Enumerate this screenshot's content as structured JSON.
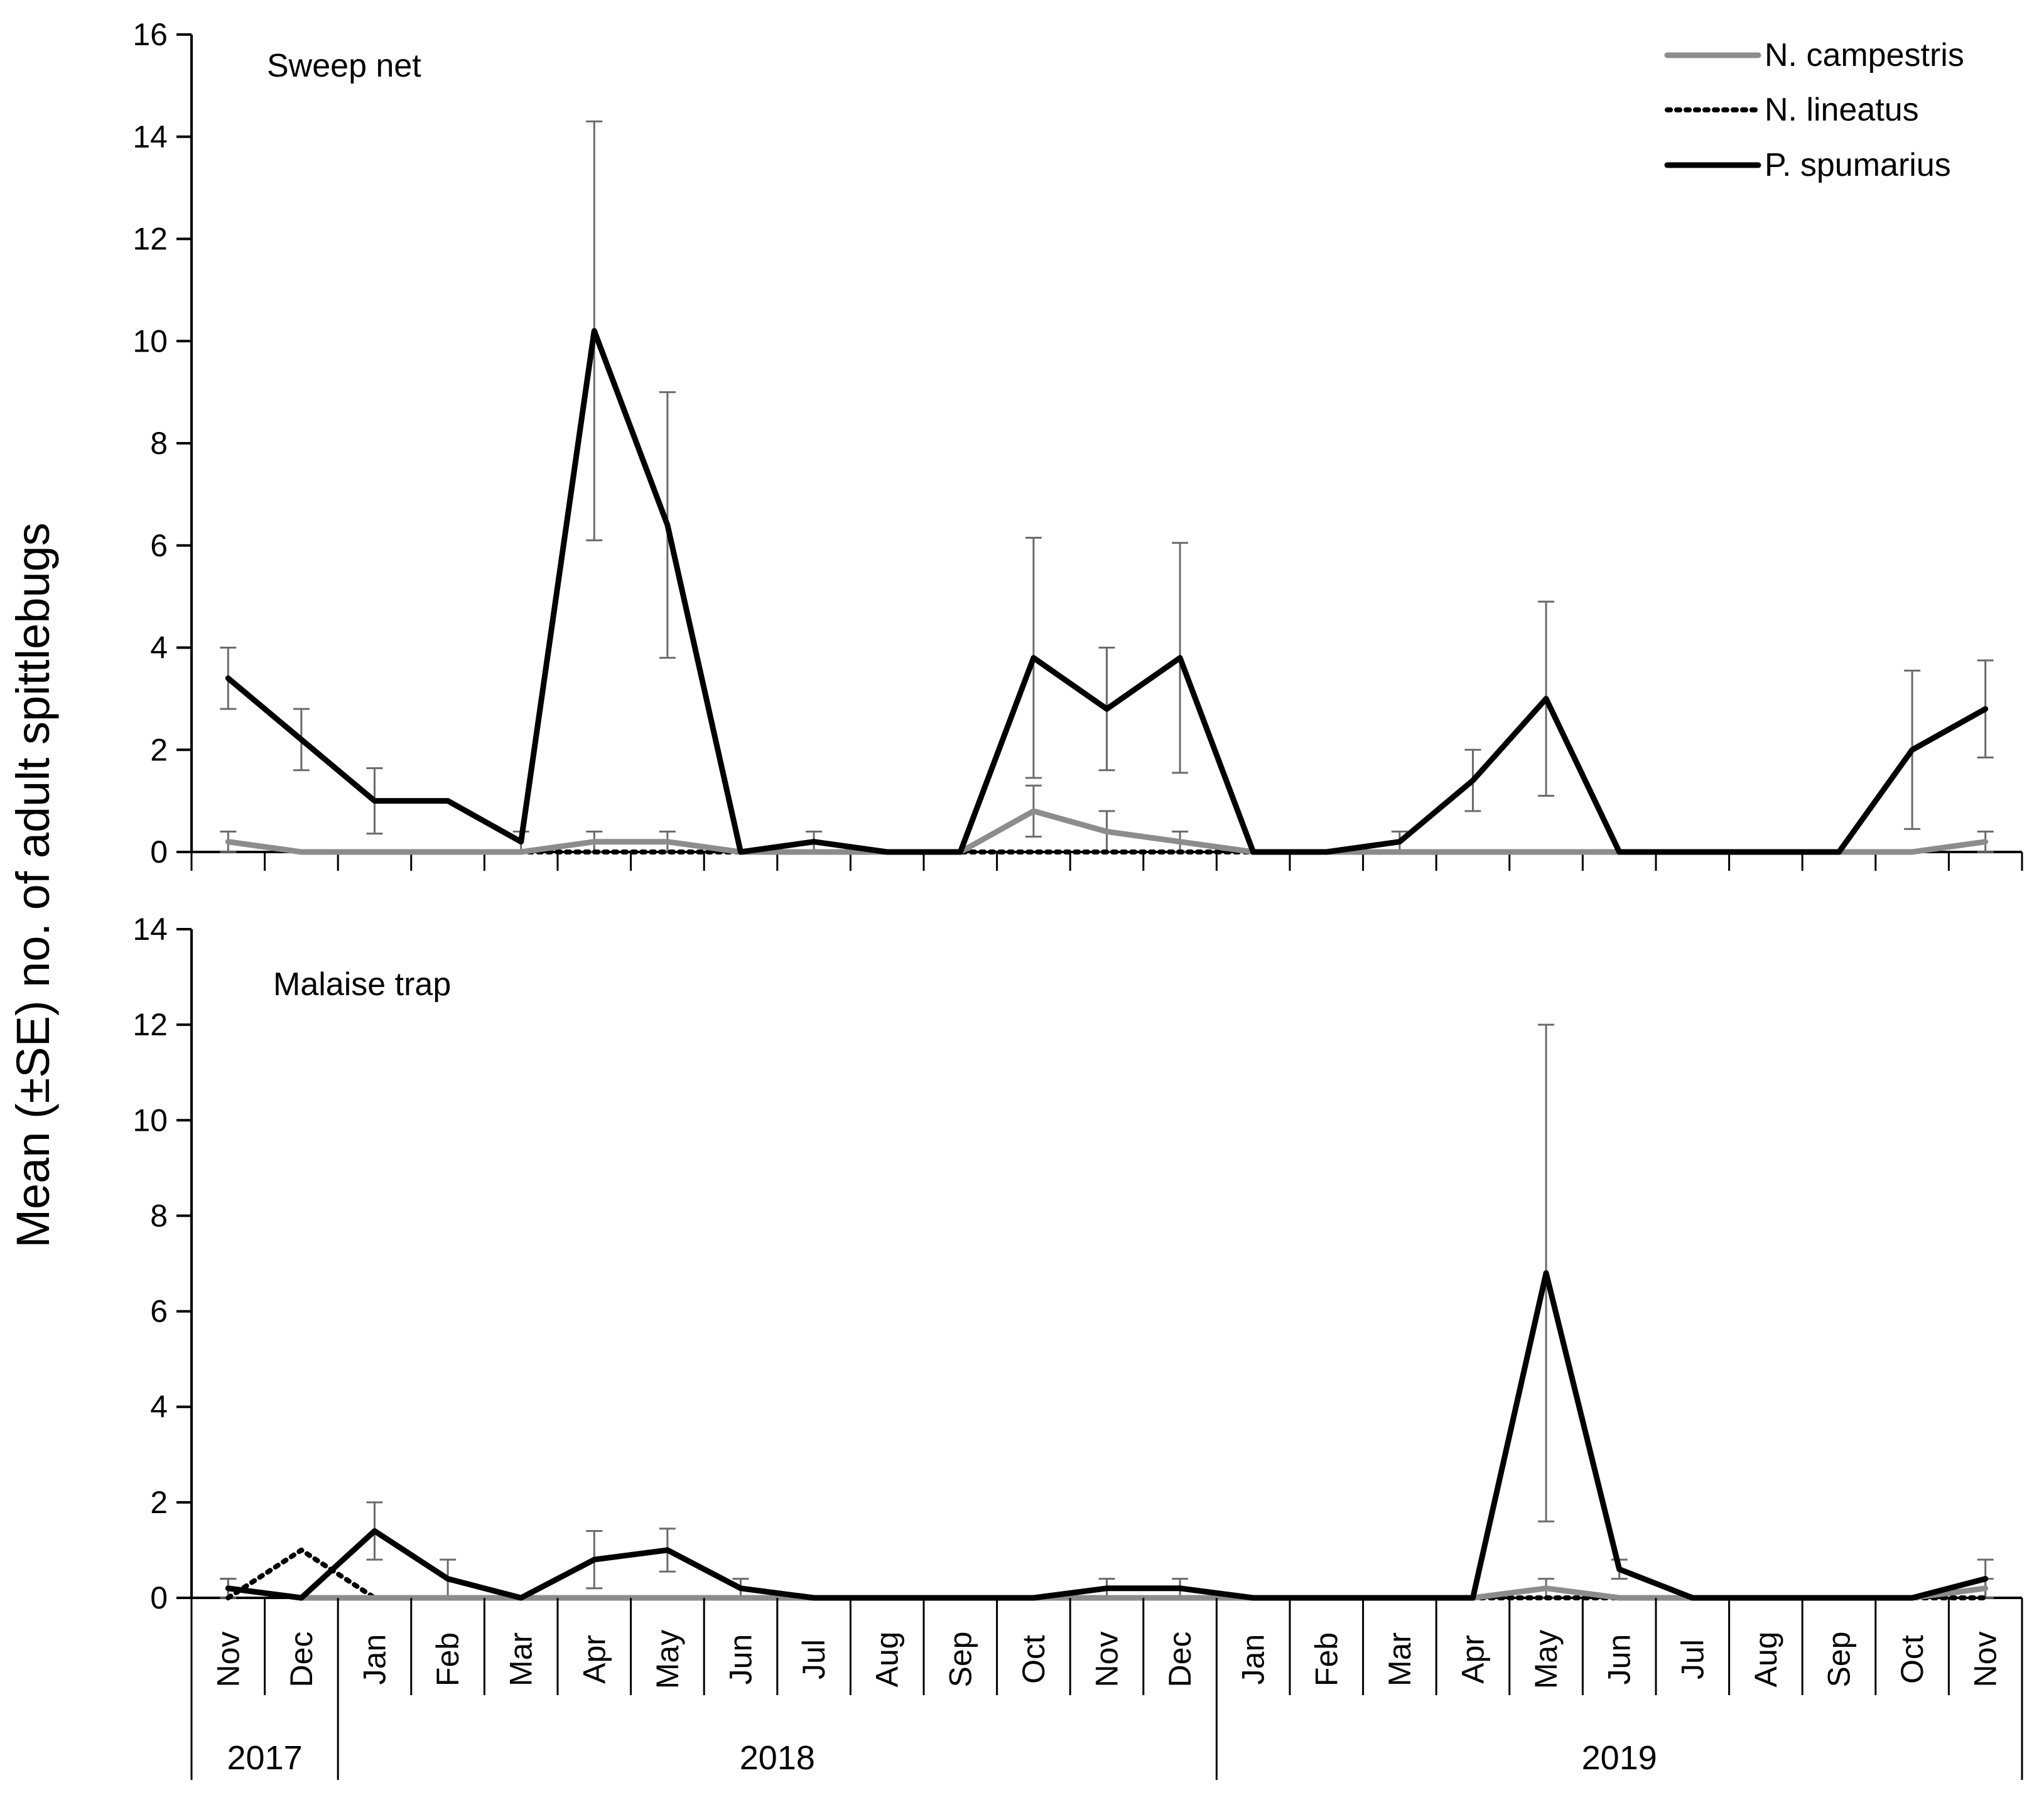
{
  "chart_data": {
    "type": "line",
    "ylabel": "Mean (±SE) no. of adult spittlebugs",
    "categories": [
      "Nov",
      "Dec",
      "Jan",
      "Feb",
      "Mar",
      "Apr",
      "May",
      "Jun",
      "Jul",
      "Aug",
      "Sep",
      "Oct",
      "Nov",
      "Dec",
      "Jan",
      "Feb",
      "Mar",
      "Apr",
      "May",
      "Jun",
      "Jul",
      "Aug",
      "Sep",
      "Oct",
      "Nov"
    ],
    "years": [
      {
        "label": "2017",
        "start": 0,
        "end": 1
      },
      {
        "label": "2018",
        "start": 2,
        "end": 13
      },
      {
        "label": "2019",
        "start": 14,
        "end": 24
      }
    ],
    "legend": [
      {
        "name": "N. campestris",
        "color": "#8c8c8c",
        "style": "solid"
      },
      {
        "name": "N. lineatus",
        "color": "#000000",
        "style": "dotted"
      },
      {
        "name": "P. spumarius",
        "color": "#000000",
        "style": "solid"
      }
    ],
    "panels": [
      {
        "title": "Sweep net",
        "ylim": [
          0,
          16
        ],
        "yticks": [
          0,
          2,
          4,
          6,
          8,
          10,
          12,
          14,
          16
        ],
        "series": [
          {
            "name": "N. campestris",
            "values": [
              0.2,
              0,
              0,
              0,
              0,
              0.2,
              0.2,
              0,
              0,
              0,
              0,
              0.8,
              0.4,
              0.2,
              0,
              0,
              0,
              0,
              0,
              0,
              0,
              0,
              0,
              0,
              0.2
            ],
            "errors": [
              0.2,
              0,
              0,
              0,
              0,
              0.2,
              0.2,
              0,
              0,
              0,
              0,
              0.5,
              0.4,
              0.2,
              0,
              0,
              0,
              0,
              0,
              0,
              0,
              0,
              0,
              0,
              0.2
            ]
          },
          {
            "name": "N. lineatus",
            "values": [
              0.2,
              0,
              0,
              0,
              0,
              0,
              0,
              0,
              0,
              0,
              0,
              0,
              0,
              0,
              0,
              0,
              0,
              0,
              0,
              0,
              0,
              0,
              0,
              0,
              0.2
            ],
            "errors": [
              0,
              0,
              0,
              0,
              0,
              0,
              0,
              0,
              0,
              0,
              0,
              0,
              0,
              0,
              0,
              0,
              0,
              0,
              0,
              0,
              0,
              0,
              0,
              0,
              0
            ]
          },
          {
            "name": "P. spumarius",
            "values": [
              3.4,
              2.2,
              1.0,
              1.0,
              0.2,
              10.2,
              6.4,
              0,
              0.2,
              0,
              0,
              3.8,
              2.8,
              3.8,
              0,
              0,
              0.2,
              1.4,
              3.0,
              0,
              0,
              0,
              0,
              2.0,
              2.8
            ],
            "errors": [
              0.6,
              0.6,
              0.64,
              0,
              0.2,
              4.1,
              2.6,
              0,
              0.2,
              0,
              0,
              2.35,
              1.2,
              2.25,
              0,
              0,
              0.2,
              0.6,
              1.9,
              0,
              0,
              0,
              0,
              1.55,
              0.95
            ]
          }
        ]
      },
      {
        "title": "Malaise trap",
        "ylim": [
          0,
          14
        ],
        "yticks": [
          0,
          2,
          4,
          6,
          8,
          10,
          12,
          14
        ],
        "series": [
          {
            "name": "N. campestris",
            "values": [
              0.2,
              0,
              0,
              0,
              0,
              0,
              0,
              0,
              0,
              0,
              0,
              0,
              0,
              0,
              0,
              0,
              0,
              0,
              0.2,
              0,
              0,
              0,
              0,
              0,
              0.2
            ],
            "errors": [
              0.2,
              0,
              0,
              0,
              0,
              0,
              0,
              0,
              0,
              0,
              0,
              0,
              0,
              0,
              0,
              0,
              0,
              0,
              0.2,
              0,
              0,
              0,
              0,
              0,
              0.2
            ]
          },
          {
            "name": "N. lineatus",
            "values": [
              0,
              1.0,
              0,
              0,
              0,
              0,
              0,
              0,
              0,
              0,
              0,
              0,
              0,
              0,
              0,
              0,
              0,
              0,
              0,
              0,
              0,
              0,
              0,
              0,
              0
            ],
            "errors": [
              0,
              0,
              0,
              0,
              0,
              0,
              0,
              0,
              0,
              0,
              0,
              0,
              0,
              0,
              0,
              0,
              0,
              0,
              0,
              0,
              0,
              0,
              0,
              0,
              0
            ]
          },
          {
            "name": "P. spumarius",
            "values": [
              0.2,
              0,
              1.4,
              0.4,
              0,
              0.8,
              1.0,
              0.2,
              0,
              0,
              0,
              0,
              0.2,
              0.2,
              0,
              0,
              0,
              0,
              6.8,
              0.6,
              0,
              0,
              0,
              0,
              0.4
            ],
            "errors": [
              0.2,
              0,
              0.6,
              0.4,
              0,
              0.6,
              0.45,
              0.2,
              0,
              0,
              0,
              0,
              0.2,
              0.2,
              0,
              0,
              0,
              0,
              5.2,
              0.2,
              0,
              0,
              0,
              0,
              0.4
            ]
          }
        ]
      }
    ]
  }
}
